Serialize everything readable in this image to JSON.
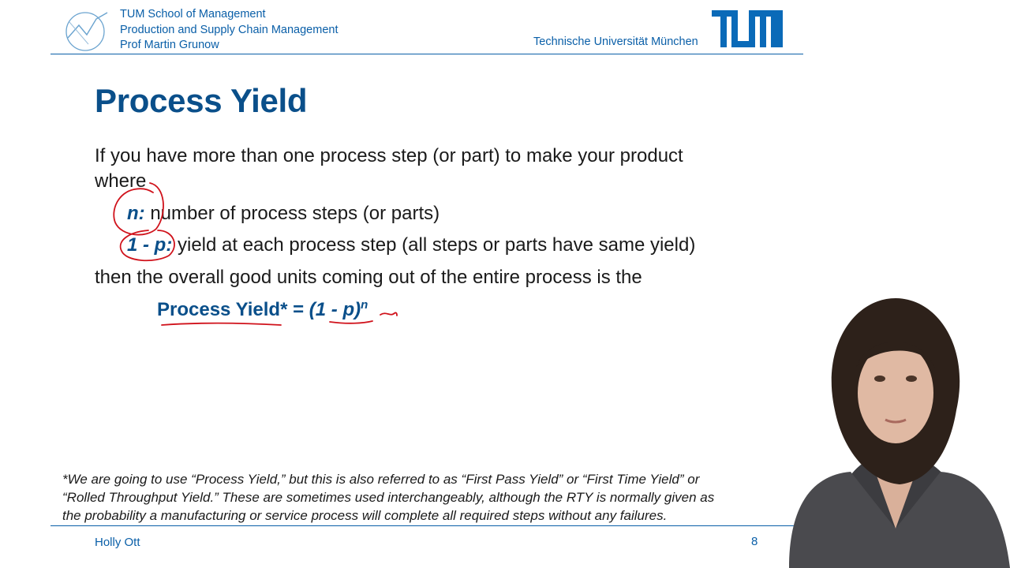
{
  "header": {
    "school": "TUM School of Management",
    "chair": "Production and Supply Chain Management",
    "professor": "Prof Martin Grunow",
    "university": "Technische Universität München"
  },
  "slide": {
    "title": "Process Yield",
    "intro_line1": "If you have more than one process step (or part) to make your product",
    "intro_line2": "where",
    "var_n": "n:",
    "var_n_desc": " number of process steps (or parts)",
    "var_p": "1 - p:",
    "var_p_desc": " yield at each process step (all steps or parts have same yield)",
    "conclusion": "then the overall good units coming out of the entire process is the",
    "formula_lhs": "Process Yield* = ",
    "formula_base": "(1 - p)",
    "formula_exp": "n",
    "footnote_line1": "*We are going to use “Process Yield,” but this is also referred to as “First Pass Yield” or “First Time Yield” or",
    "footnote_line2": "“Rolled Throughput Yield.” These are sometimes used interchangeably, although the RTY is normally given as",
    "footnote_line3": "the probability a manufacturing or service process will complete all required steps without any failures."
  },
  "footer": {
    "author": "Holly Ott",
    "page": "8"
  },
  "colors": {
    "brand_blue": "#0a5fa8",
    "title_blue": "#0a4f8a",
    "annotation_red": "#d0121b"
  },
  "icons": [
    "tum-school-logo",
    "tum-logo",
    "presenter-video"
  ]
}
